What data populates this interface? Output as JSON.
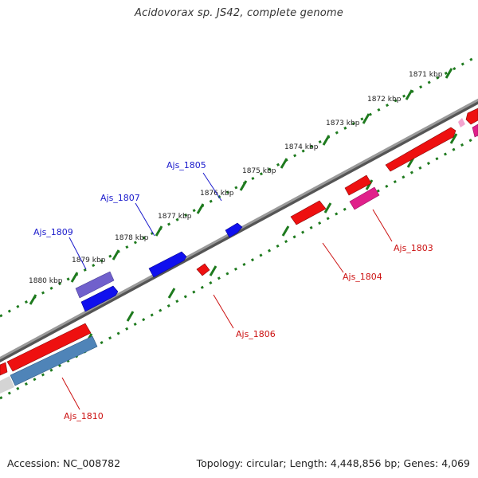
{
  "title": "Acidovorax sp. JS42, complete genome",
  "footer": {
    "accession": "Accession: NC_008782",
    "topology": "Topology: circular; Length: 4,448,856 bp; Genes: 4,069"
  },
  "colors": {
    "backbone": "#8a8a8a",
    "forward_gene": "#1010ee",
    "reverse_gene": "#ee1010",
    "pink_gene": "#e0208a",
    "purple_gene": "#7060cc",
    "steel_gene": "#4f84b8",
    "tick_green": "#1e7a1e",
    "blue_label": "#1a1acc",
    "red_label": "#cc1111"
  },
  "kbp_labels": [
    "1871 kbp",
    "1872 kbp",
    "1873 kbp",
    "1874 kbp",
    "1875 kbp",
    "1876 kbp",
    "1877 kbp",
    "1878 kbp",
    "1879 kbp",
    "1880 kbp"
  ],
  "gene_labels": [
    {
      "text": "Ajs_1805",
      "strand": "forward"
    },
    {
      "text": "Ajs_1807",
      "strand": "forward"
    },
    {
      "text": "Ajs_1809",
      "strand": "forward"
    },
    {
      "text": "Ajs_1803",
      "strand": "reverse"
    },
    {
      "text": "Ajs_1804",
      "strand": "reverse"
    },
    {
      "text": "Ajs_1806",
      "strand": "reverse"
    },
    {
      "text": "Ajs_1810",
      "strand": "reverse"
    }
  ]
}
